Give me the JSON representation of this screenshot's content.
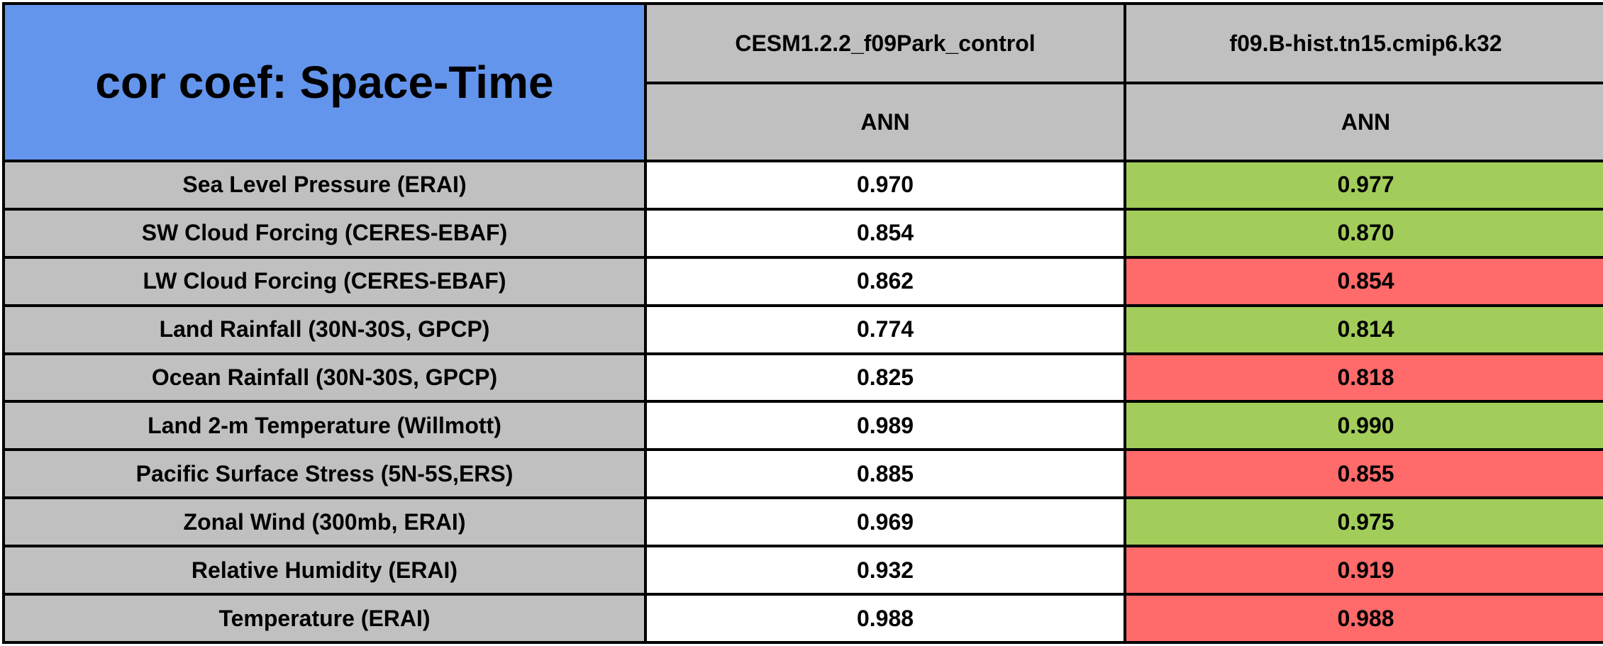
{
  "title": "cor coef: Space-Time",
  "columns": [
    {
      "model": "CESM1.2.2_f09Park_control",
      "season": "ANN"
    },
    {
      "model": "f09.B-hist.tn15.cmip6.k32",
      "season": "ANN"
    }
  ],
  "rows": [
    {
      "label": "Sea Level Pressure (ERAI)",
      "control": "0.970",
      "experiment": "0.977",
      "experiment_status": "better"
    },
    {
      "label": "SW Cloud Forcing (CERES-EBAF)",
      "control": "0.854",
      "experiment": "0.870",
      "experiment_status": "better"
    },
    {
      "label": "LW Cloud Forcing (CERES-EBAF)",
      "control": "0.862",
      "experiment": "0.854",
      "experiment_status": "worse"
    },
    {
      "label": "Land Rainfall (30N-30S, GPCP)",
      "control": "0.774",
      "experiment": "0.814",
      "experiment_status": "better"
    },
    {
      "label": "Ocean Rainfall (30N-30S, GPCP)",
      "control": "0.825",
      "experiment": "0.818",
      "experiment_status": "worse"
    },
    {
      "label": "Land 2-m Temperature (Willmott)",
      "control": "0.989",
      "experiment": "0.990",
      "experiment_status": "better"
    },
    {
      "label": "Pacific Surface Stress (5N-5S,ERS)",
      "control": "0.885",
      "experiment": "0.855",
      "experiment_status": "worse"
    },
    {
      "label": "Zonal Wind (300mb, ERAI)",
      "control": "0.969",
      "experiment": "0.975",
      "experiment_status": "better"
    },
    {
      "label": "Relative Humidity (ERAI)",
      "control": "0.932",
      "experiment": "0.919",
      "experiment_status": "worse"
    },
    {
      "label": "Temperature (ERAI)",
      "control": "0.988",
      "experiment": "0.988",
      "experiment_status": "worse"
    }
  ],
  "colors": {
    "title_bg": "#6495ED",
    "header_bg": "#C0C0C0",
    "better_bg": "#A2CD5A",
    "worse_bg": "#FF6A6A",
    "border": "#000000",
    "value_bg": "#FFFFFF",
    "text": "#000000"
  },
  "chart_data": {
    "type": "table",
    "title": "cor coef: Space-Time",
    "column_headers": [
      "CESM1.2.2_f09Park_control (ANN)",
      "f09.B-hist.tn15.cmip6.k32 (ANN)"
    ],
    "row_labels": [
      "Sea Level Pressure (ERAI)",
      "SW Cloud Forcing (CERES-EBAF)",
      "LW Cloud Forcing (CERES-EBAF)",
      "Land Rainfall (30N-30S, GPCP)",
      "Ocean Rainfall (30N-30S, GPCP)",
      "Land 2-m Temperature (Willmott)",
      "Pacific Surface Stress (5N-5S,ERS)",
      "Zonal Wind (300mb, ERAI)",
      "Relative Humidity (ERAI)",
      "Temperature (ERAI)"
    ],
    "series": [
      {
        "name": "CESM1.2.2_f09Park_control ANN",
        "values": [
          0.97,
          0.854,
          0.862,
          0.774,
          0.825,
          0.989,
          0.885,
          0.969,
          0.932,
          0.988
        ]
      },
      {
        "name": "f09.B-hist.tn15.cmip6.k32 ANN",
        "values": [
          0.977,
          0.87,
          0.854,
          0.814,
          0.818,
          0.99,
          0.855,
          0.975,
          0.919,
          0.988
        ]
      }
    ],
    "cell_highlight": {
      "green_better": [
        0.977,
        0.87,
        0.814,
        0.99,
        0.975
      ],
      "red_worse": [
        0.854,
        0.818,
        0.855,
        0.919,
        0.988
      ]
    },
    "layout": "first column row labels on gray; control values on white; experiment values colored green (improved) or red (degraded)"
  }
}
